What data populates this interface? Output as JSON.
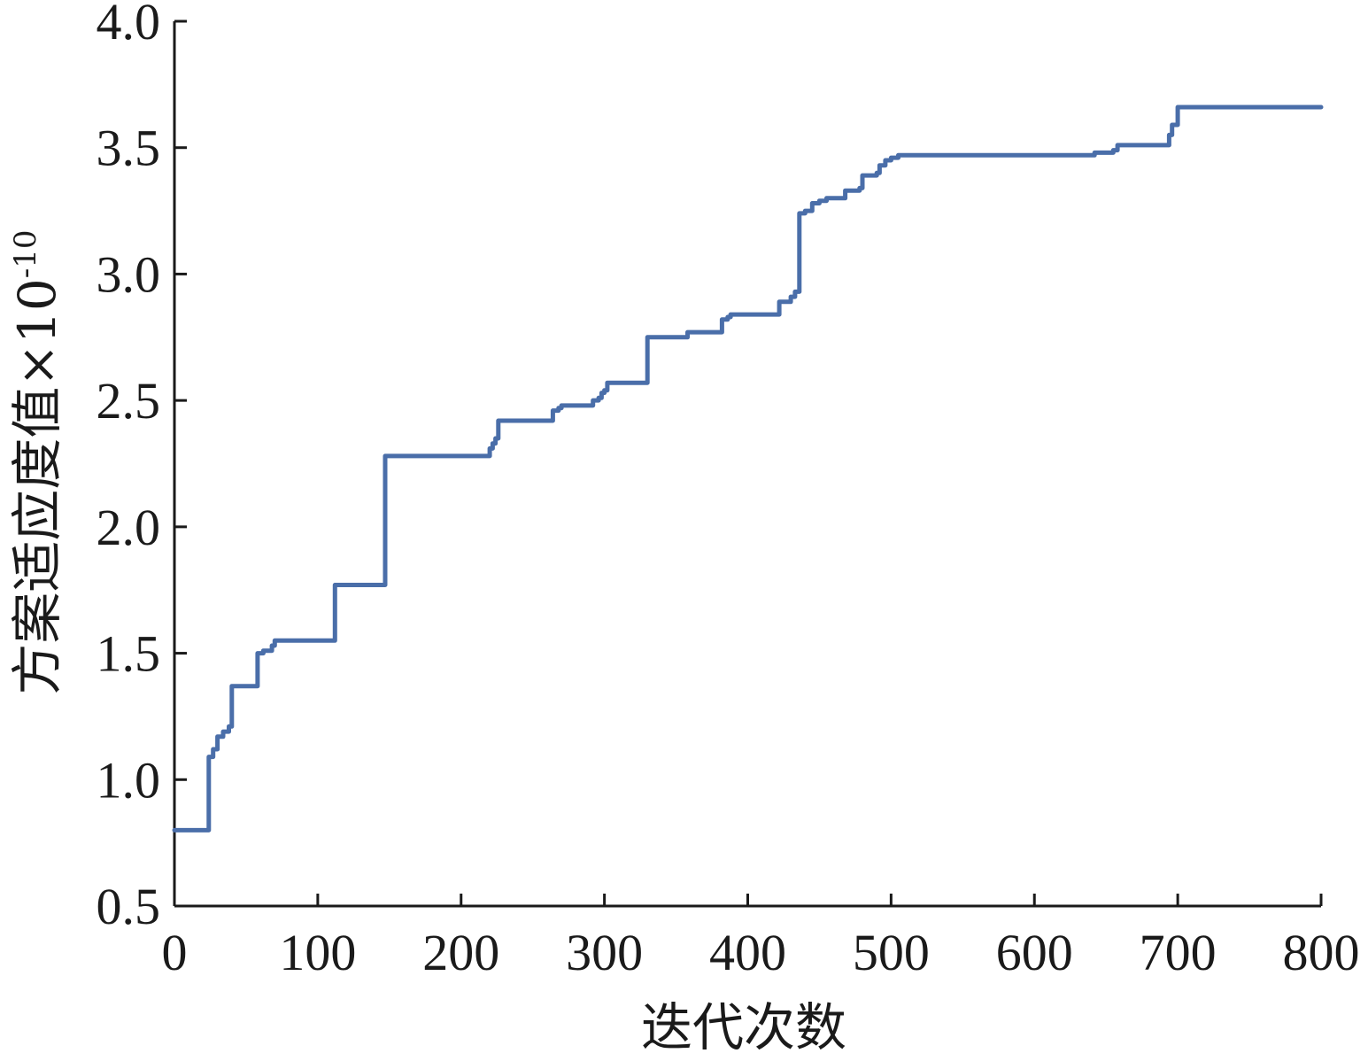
{
  "chart_data": {
    "type": "line",
    "title": "",
    "xlabel": "迭代次数",
    "ylabel": "方案适应度值×10",
    "ylabel_exponent": "-10",
    "xlim": [
      0,
      800
    ],
    "ylim": [
      0.5,
      4.0
    ],
    "x_ticks": [
      "0",
      "100",
      "200",
      "300",
      "400",
      "500",
      "600",
      "700",
      "800"
    ],
    "y_ticks": [
      "0.5",
      "1.0",
      "1.5",
      "2.0",
      "2.5",
      "3.0",
      "3.5",
      "4.0"
    ],
    "grid": false,
    "legend": "none",
    "series": [
      {
        "color": "#4a6ea9",
        "step": true,
        "x": [
          0,
          22,
          24,
          27,
          30,
          34,
          38,
          40,
          56,
          58,
          62,
          68,
          70,
          110,
          112,
          145,
          147,
          218,
          220,
          222,
          224,
          226,
          262,
          264,
          268,
          270,
          290,
          292,
          296,
          298,
          300,
          302,
          328,
          330,
          355,
          358,
          380,
          382,
          386,
          388,
          420,
          422,
          430,
          433,
          436,
          440,
          445,
          450,
          455,
          465,
          468,
          478,
          480,
          490,
          492,
          496,
          500,
          505,
          515,
          640,
          642,
          655,
          658,
          692,
          694,
          696,
          700,
          800
        ],
        "y": [
          0.8,
          0.8,
          1.09,
          1.12,
          1.17,
          1.19,
          1.21,
          1.37,
          1.37,
          1.5,
          1.51,
          1.53,
          1.55,
          1.55,
          1.77,
          1.77,
          2.28,
          2.28,
          2.31,
          2.33,
          2.35,
          2.42,
          2.42,
          2.46,
          2.47,
          2.48,
          2.48,
          2.5,
          2.51,
          2.53,
          2.54,
          2.57,
          2.57,
          2.75,
          2.75,
          2.77,
          2.77,
          2.82,
          2.83,
          2.84,
          2.84,
          2.89,
          2.91,
          2.93,
          3.24,
          3.25,
          3.28,
          3.29,
          3.3,
          3.3,
          3.33,
          3.34,
          3.39,
          3.4,
          3.43,
          3.45,
          3.46,
          3.47,
          3.47,
          3.47,
          3.48,
          3.49,
          3.51,
          3.51,
          3.55,
          3.59,
          3.66,
          3.66
        ]
      }
    ]
  }
}
